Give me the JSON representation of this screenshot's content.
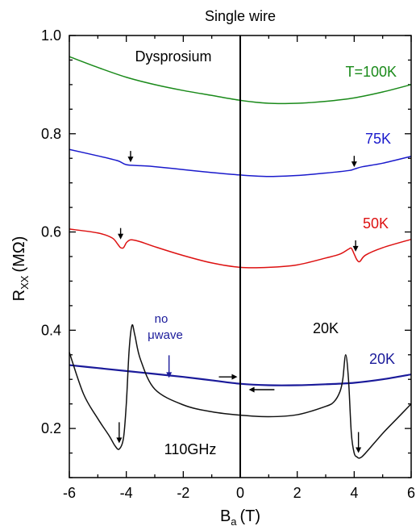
{
  "chart_data": {
    "type": "line",
    "title": "Single wire",
    "xlabel_main": "B",
    "xlabel_sub": "a",
    "xlabel_unit": "(T)",
    "ylabel_main": "R",
    "ylabel_sub": "XX",
    "ylabel_unit": "(MΩ)",
    "xlim": [
      -6,
      6
    ],
    "ylim": [
      0.1,
      1.0
    ],
    "xticks": [
      -6,
      -4,
      -2,
      0,
      2,
      4,
      6
    ],
    "xtick_labels": [
      "-6",
      "-4",
      "-2",
      "0",
      "2",
      "4",
      "6"
    ],
    "yticks": [
      0.2,
      0.4,
      0.6,
      0.8,
      1.0
    ],
    "ytick_labels": [
      "0.2",
      "0.4",
      "0.6",
      "0.8",
      "1.0"
    ],
    "grid": false,
    "series": [
      {
        "name": "T=100K",
        "color": "#1a8a1a",
        "x": [
          -6,
          -5,
          -4,
          -3,
          -2,
          -1,
          0,
          1,
          2,
          3,
          4,
          5,
          6
        ],
        "y": [
          0.957,
          0.935,
          0.915,
          0.9,
          0.888,
          0.878,
          0.868,
          0.862,
          0.862,
          0.866,
          0.873,
          0.885,
          0.9
        ]
      },
      {
        "name": "75K",
        "color": "#1a1acc",
        "x": [
          -6,
          -5,
          -4.3,
          -4,
          -3.5,
          -3,
          -2,
          -1,
          0,
          1,
          2,
          3,
          3.8,
          4,
          4.3,
          5,
          6
        ],
        "y": [
          0.768,
          0.755,
          0.745,
          0.737,
          0.735,
          0.733,
          0.727,
          0.721,
          0.716,
          0.713,
          0.715,
          0.72,
          0.725,
          0.728,
          0.733,
          0.74,
          0.754
        ]
      },
      {
        "name": "50K",
        "color": "#dd1111",
        "x": [
          -6,
          -5,
          -4.5,
          -4.3,
          -4.2,
          -4.1,
          -4.0,
          -3.9,
          -3.8,
          -3.5,
          -3,
          -2,
          -1,
          0,
          1,
          2,
          3,
          3.5,
          3.8,
          3.9,
          4.0,
          4.1,
          4.2,
          4.4,
          5,
          6
        ],
        "y": [
          0.606,
          0.598,
          0.588,
          0.575,
          0.568,
          0.568,
          0.578,
          0.583,
          0.584,
          0.58,
          0.57,
          0.552,
          0.537,
          0.528,
          0.528,
          0.533,
          0.547,
          0.555,
          0.565,
          0.567,
          0.555,
          0.543,
          0.54,
          0.553,
          0.568,
          0.585
        ]
      },
      {
        "name": "20K",
        "color": "#1a1a9a",
        "x": [
          -6,
          -5,
          -4,
          -3,
          -2,
          -1,
          0,
          1,
          2,
          3,
          4,
          5,
          6
        ],
        "y": [
          0.329,
          0.323,
          0.317,
          0.311,
          0.305,
          0.298,
          0.291,
          0.288,
          0.288,
          0.29,
          0.293,
          0.3,
          0.31
        ]
      },
      {
        "name": "20K",
        "color": "#111111",
        "x": [
          -6,
          -5.5,
          -5,
          -4.6,
          -4.4,
          -4.25,
          -4.1,
          -4.0,
          -3.9,
          -3.8,
          -3.7,
          -3.5,
          -3,
          -2,
          -1,
          0,
          1,
          2,
          3,
          3.3,
          3.5,
          3.6,
          3.7,
          3.8,
          3.9,
          4.0,
          4.1,
          4.2,
          4.4,
          5,
          5.5,
          6
        ],
        "y": [
          0.355,
          0.27,
          0.22,
          0.185,
          0.165,
          0.158,
          0.18,
          0.25,
          0.36,
          0.41,
          0.39,
          0.34,
          0.28,
          0.248,
          0.234,
          0.227,
          0.224,
          0.228,
          0.245,
          0.255,
          0.275,
          0.3,
          0.35,
          0.3,
          0.19,
          0.15,
          0.142,
          0.14,
          0.15,
          0.19,
          0.22,
          0.25
        ]
      }
    ],
    "annotations": [
      {
        "text": "Dysprosium",
        "color": "#000000"
      },
      {
        "text": "T=100K",
        "color": "#1a8a1a"
      },
      {
        "text": "75K",
        "color": "#1a1acc"
      },
      {
        "text": "50K",
        "color": "#dd1111"
      },
      {
        "text": "20K",
        "color": "#000000"
      },
      {
        "text": "20K",
        "color": "#1a1a9a"
      },
      {
        "text": "no",
        "color": "#1a1a9a"
      },
      {
        "text": "μwave",
        "color": "#1a1a9a"
      },
      {
        "text": "110GHz",
        "color": "#000000"
      }
    ]
  }
}
